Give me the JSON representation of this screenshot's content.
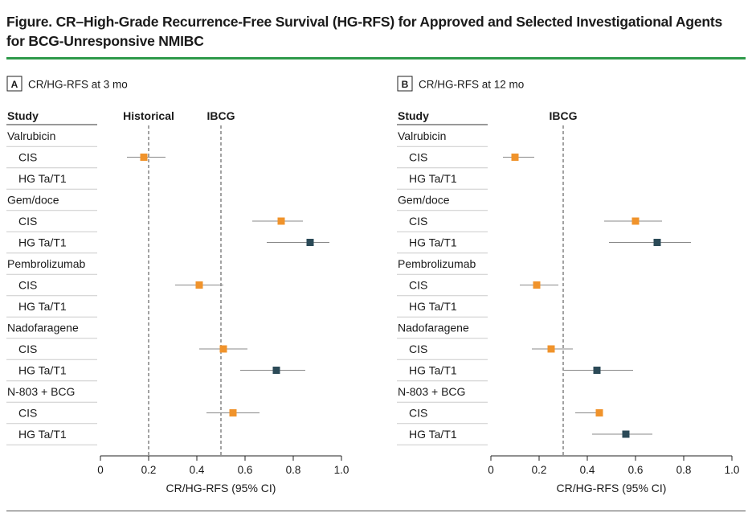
{
  "figure": {
    "title_line1": "Figure. CR–High-Grade Recurrence-Free Survival (HG-RFS) for Approved and Selected Investigational Agents",
    "title_line2": "for BCG-Unresponsive NMIBC"
  },
  "colors": {
    "cis": "#f0932b",
    "hg": "#2b4a57",
    "accent": "#2e9a4a",
    "ci_line": "#888888",
    "ref_line": "#444444"
  },
  "rows": [
    {
      "label": "Valrubicin",
      "type": "group"
    },
    {
      "label": "CIS",
      "type": "cis"
    },
    {
      "label": "HG Ta/T1",
      "type": "hg"
    },
    {
      "label": "Gem/doce",
      "type": "group"
    },
    {
      "label": "CIS",
      "type": "cis"
    },
    {
      "label": "HG Ta/T1",
      "type": "hg"
    },
    {
      "label": "Pembrolizumab",
      "type": "group"
    },
    {
      "label": "CIS",
      "type": "cis"
    },
    {
      "label": "HG Ta/T1",
      "type": "hg"
    },
    {
      "label": "Nadofaragene",
      "type": "group"
    },
    {
      "label": "CIS",
      "type": "cis"
    },
    {
      "label": "HG Ta/T1",
      "type": "hg"
    },
    {
      "label": "N-803 + BCG",
      "type": "group"
    },
    {
      "label": "CIS",
      "type": "cis"
    },
    {
      "label": "HG Ta/T1",
      "type": "hg"
    }
  ],
  "chart_data": [
    {
      "type": "scatter",
      "panel_letter": "A",
      "panel_title": "CR/HG-RFS at 3 mo",
      "column_header": "Study",
      "xlabel": "CR/HG-RFS (95% CI)",
      "xlim": [
        0,
        1.0
      ],
      "xticks": [
        0,
        0.2,
        0.4,
        0.6,
        0.8,
        1.0
      ],
      "xtick_labels": [
        "0",
        "0.2",
        "0.4",
        "0.6",
        "0.8",
        "1.0"
      ],
      "reference_lines": [
        {
          "label": "Historical",
          "x": 0.2
        },
        {
          "label": "IBCG",
          "x": 0.5
        }
      ],
      "points": [
        {
          "row": 1,
          "value": 0.18,
          "lo": 0.11,
          "hi": 0.27
        },
        {
          "row": 4,
          "value": 0.75,
          "lo": 0.63,
          "hi": 0.84
        },
        {
          "row": 5,
          "value": 0.87,
          "lo": 0.69,
          "hi": 0.95
        },
        {
          "row": 7,
          "value": 0.41,
          "lo": 0.31,
          "hi": 0.51
        },
        {
          "row": 10,
          "value": 0.51,
          "lo": 0.41,
          "hi": 0.61
        },
        {
          "row": 11,
          "value": 0.73,
          "lo": 0.58,
          "hi": 0.85
        },
        {
          "row": 13,
          "value": 0.55,
          "lo": 0.44,
          "hi": 0.66
        }
      ]
    },
    {
      "type": "scatter",
      "panel_letter": "B",
      "panel_title": "CR/HG-RFS at 12 mo",
      "column_header": "Study",
      "xlabel": "CR/HG-RFS (95% CI)",
      "xlim": [
        0,
        1.0
      ],
      "xticks": [
        0,
        0.2,
        0.4,
        0.6,
        0.8,
        1.0
      ],
      "xtick_labels": [
        "0",
        "0.2",
        "0.4",
        "0.6",
        "0.8",
        "1.0"
      ],
      "reference_lines": [
        {
          "label": "IBCG",
          "x": 0.3
        }
      ],
      "points": [
        {
          "row": 1,
          "value": 0.1,
          "lo": 0.05,
          "hi": 0.18
        },
        {
          "row": 4,
          "value": 0.6,
          "lo": 0.47,
          "hi": 0.71
        },
        {
          "row": 5,
          "value": 0.69,
          "lo": 0.49,
          "hi": 0.83
        },
        {
          "row": 7,
          "value": 0.19,
          "lo": 0.12,
          "hi": 0.28
        },
        {
          "row": 10,
          "value": 0.25,
          "lo": 0.17,
          "hi": 0.34
        },
        {
          "row": 11,
          "value": 0.44,
          "lo": 0.3,
          "hi": 0.59
        },
        {
          "row": 13,
          "value": 0.45,
          "lo": 0.35,
          "hi": 0.45
        },
        {
          "row": 14,
          "value": 0.56,
          "lo": 0.42,
          "hi": 0.67
        }
      ]
    }
  ]
}
